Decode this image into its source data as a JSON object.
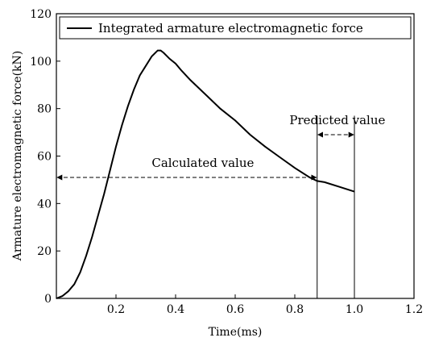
{
  "chart_data": {
    "type": "line",
    "xlabel": "Time(ms)",
    "ylabel": "Armature electromagnetic force(kN)",
    "xlim": [
      0,
      1.2
    ],
    "ylim": [
      0,
      120
    ],
    "x_ticks": [
      "0.2",
      "0.4",
      "0.6",
      "0.8",
      "1.0",
      "1.2"
    ],
    "y_ticks": [
      "0",
      "20",
      "40",
      "60",
      "80",
      "100",
      "120"
    ],
    "legend_position": "top-right",
    "grid": false,
    "series": [
      {
        "name": "Integrated armature electromagnetic force",
        "color": "#000000",
        "x": [
          0.0,
          0.02,
          0.04,
          0.06,
          0.08,
          0.1,
          0.12,
          0.14,
          0.16,
          0.18,
          0.2,
          0.22,
          0.24,
          0.26,
          0.28,
          0.3,
          0.32,
          0.34,
          0.35,
          0.36,
          0.38,
          0.4,
          0.42,
          0.45,
          0.5,
          0.55,
          0.6,
          0.65,
          0.7,
          0.75,
          0.8,
          0.85,
          0.875,
          0.9,
          0.95,
          1.0
        ],
        "y": [
          0,
          1,
          3,
          6,
          11,
          18,
          26,
          35,
          44,
          54,
          64,
          73,
          81,
          88,
          94,
          98,
          102,
          104.5,
          104.5,
          103.5,
          101,
          99,
          96,
          92,
          86,
          80,
          75,
          69,
          64,
          59.5,
          55,
          51,
          49.5,
          49,
          47,
          45
        ]
      }
    ],
    "annotations": [
      {
        "text": "Calculated value",
        "type": "arrow-span",
        "x_from": 0.0,
        "x_to": 0.875,
        "y": 51
      },
      {
        "text": "Predicted value",
        "type": "arrow-span",
        "x_from": 0.875,
        "x_to": 1.0,
        "y": 69
      }
    ],
    "vlines": [
      {
        "x": 0.875,
        "y_top": 77
      },
      {
        "x": 1.0,
        "y_top": 77
      }
    ]
  }
}
